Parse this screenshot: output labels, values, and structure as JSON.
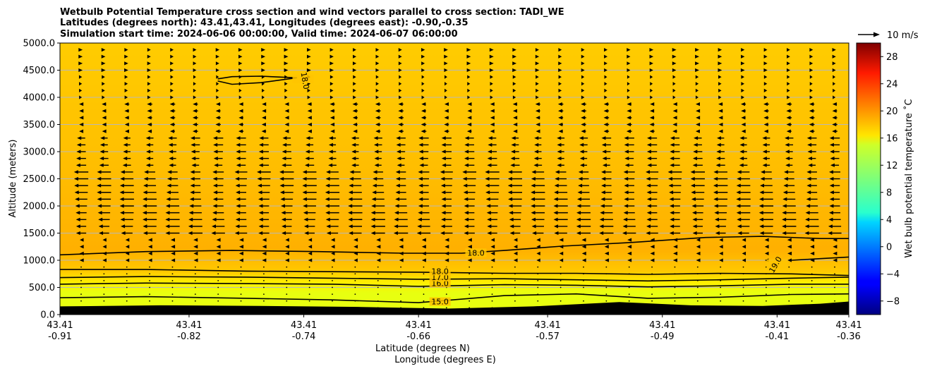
{
  "chart_data": {
    "type": "heatmap",
    "title_lines": [
      "Wetbulb Potential Temperature cross section and wind vectors parallel to cross section: TADI_WE",
      "Latitudes (degrees north): 43.41,43.41, Longitudes (degrees east): -0.90,-0.35",
      "Simulation start time: 2024-06-06 00:00:00, Valid time: 2024-06-07 06:00:00"
    ],
    "ylabel": "Altitude (meters)",
    "xlabel_lat": "Latitude (degrees N)",
    "xlabel_lon": "Longitude (degrees E)",
    "ylim": [
      0,
      5000
    ],
    "yticks": [
      "0.0",
      "500.0",
      "1000.0",
      "1500.0",
      "2000.0",
      "2500.0",
      "3000.0",
      "3500.0",
      "4000.0",
      "4500.0",
      "5000.0"
    ],
    "xlim": [
      -0.91,
      -0.36
    ],
    "xticks": [
      {
        "lon": -0.91,
        "lat_label": "43.41",
        "lon_label": "-0.91"
      },
      {
        "lon": -0.82,
        "lat_label": "43.41",
        "lon_label": "-0.82"
      },
      {
        "lon": -0.74,
        "lat_label": "43.41",
        "lon_label": "-0.74"
      },
      {
        "lon": -0.66,
        "lat_label": "43.41",
        "lon_label": "-0.66"
      },
      {
        "lon": -0.57,
        "lat_label": "43.41",
        "lon_label": "-0.57"
      },
      {
        "lon": -0.49,
        "lat_label": "43.41",
        "lon_label": "-0.49"
      },
      {
        "lon": -0.41,
        "lat_label": "43.41",
        "lon_label": "-0.41"
      },
      {
        "lon": -0.36,
        "lat_label": "43.41",
        "lon_label": "-0.36"
      }
    ],
    "grid": true,
    "colorbar": {
      "label": "Wet bulb potential temperature ˚C",
      "range": [
        -10,
        30
      ],
      "ticks": [
        "−8",
        "−4",
        "0",
        "4",
        "8",
        "12",
        "16",
        "20",
        "24",
        "28"
      ],
      "tick_values": [
        -8,
        -4,
        0,
        4,
        8,
        12,
        16,
        20,
        24,
        28
      ],
      "colormap": "jet"
    },
    "reference_vector": {
      "label": "10 m/s",
      "speed": 10
    },
    "terrain_profile": {
      "lon": [
        -0.91,
        -0.84,
        -0.77,
        -0.7,
        -0.64,
        -0.58,
        -0.52,
        -0.47,
        -0.42,
        -0.38,
        -0.36
      ],
      "alt": [
        150,
        170,
        160,
        140,
        110,
        150,
        230,
        170,
        160,
        200,
        240
      ]
    },
    "contours": [
      {
        "level": 15.0,
        "label": "15.0",
        "label_lon": -0.645,
        "label_alt": 200,
        "lon": [
          -0.91,
          -0.85,
          -0.78,
          -0.72,
          -0.66,
          -0.6,
          -0.55,
          -0.5,
          -0.45,
          -0.4,
          -0.36
        ],
        "alt": [
          310,
          330,
          300,
          270,
          220,
          350,
          380,
          300,
          320,
          370,
          380
        ]
      },
      {
        "level": 16.0,
        "label": "16.0",
        "label_lon": -0.645,
        "label_alt": 540,
        "lon": [
          -0.91,
          -0.85,
          -0.78,
          -0.72,
          -0.66,
          -0.6,
          -0.55,
          -0.5,
          -0.45,
          -0.4,
          -0.36
        ],
        "alt": [
          560,
          580,
          570,
          560,
          520,
          550,
          540,
          510,
          530,
          560,
          560
        ]
      },
      {
        "level": 17.0,
        "label": "17.0",
        "label_lon": -0.645,
        "label_alt": 650,
        "lon": [
          -0.91,
          -0.85,
          -0.78,
          -0.72,
          -0.66,
          -0.6,
          -0.55,
          -0.5,
          -0.45,
          -0.4,
          -0.36
        ],
        "alt": [
          680,
          700,
          690,
          670,
          650,
          660,
          640,
          620,
          640,
          670,
          690
        ]
      },
      {
        "level": 18.0,
        "label": "18.0",
        "label_lon": -0.645,
        "label_alt": 760,
        "lon": [
          -0.91,
          -0.85,
          -0.78,
          -0.72,
          -0.66,
          -0.6,
          -0.55,
          -0.5,
          -0.45,
          -0.4,
          -0.36
        ],
        "alt": [
          830,
          830,
          800,
          790,
          780,
          760,
          760,
          740,
          760,
          750,
          720
        ]
      },
      {
        "level": 18.0,
        "label": "18.0",
        "label_lon": -0.62,
        "label_alt": 1100,
        "lon": [
          -0.91,
          -0.85,
          -0.79,
          -0.73,
          -0.67,
          -0.63,
          -0.6,
          -0.56,
          -0.51,
          -0.46,
          -0.42,
          -0.38,
          -0.36
        ],
        "alt": [
          1100,
          1160,
          1180,
          1160,
          1130,
          1130,
          1180,
          1260,
          1330,
          1420,
          1440,
          1400,
          1400
        ]
      },
      {
        "level": 19.0,
        "label": "19.0",
        "label_lon": -0.41,
        "label_alt": 900,
        "lon": [
          -0.4,
          -0.38,
          -0.36
        ],
        "alt": [
          1000,
          1030,
          1060
        ]
      },
      {
        "level": 18.0,
        "label": "18.0",
        "label_lon": -0.7405,
        "label_alt": 4300,
        "lon": [
          -0.8,
          -0.79,
          -0.77,
          -0.745,
          -0.77,
          -0.79,
          -0.8
        ],
        "alt": [
          4340,
          4380,
          4390,
          4360,
          4270,
          4240,
          4300
        ]
      }
    ]
  }
}
